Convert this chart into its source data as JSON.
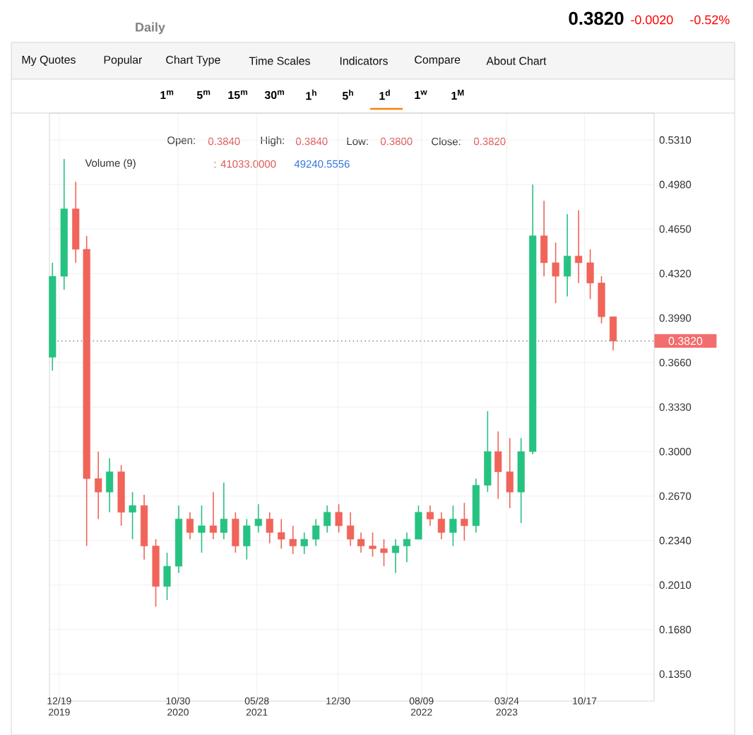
{
  "chart_data": {
    "type": "candlestick",
    "title": "Daily",
    "x": [
      "2019-12",
      "2020-01",
      "2020-02",
      "2020-03",
      "2020-04",
      "2020-05",
      "2020-06",
      "2020-07",
      "2020-08",
      "2020-09",
      "2020-10",
      "2020-11",
      "2020-12",
      "2021-01",
      "2021-02",
      "2021-03",
      "2021-04",
      "2021-05",
      "2021-06",
      "2021-07",
      "2021-08",
      "2021-09",
      "2021-10",
      "2021-11",
      "2021-12",
      "2022-01",
      "2022-02",
      "2022-03",
      "2022-04",
      "2022-05",
      "2022-06",
      "2022-07",
      "2022-08",
      "2022-09",
      "2022-10",
      "2022-11",
      "2022-12",
      "2023-01",
      "2023-02",
      "2023-03",
      "2023-04",
      "2023-05",
      "2023-06",
      "2023-07",
      "2023-08",
      "2023-09",
      "2023-10",
      "2023-11",
      "2023-12",
      "2024-01"
    ],
    "ohlc": [
      [
        0.37,
        0.44,
        0.36,
        0.43
      ],
      [
        0.43,
        0.517,
        0.42,
        0.48
      ],
      [
        0.48,
        0.5,
        0.44,
        0.45
      ],
      [
        0.45,
        0.46,
        0.23,
        0.28
      ],
      [
        0.28,
        0.3,
        0.25,
        0.27
      ],
      [
        0.27,
        0.295,
        0.255,
        0.285
      ],
      [
        0.285,
        0.29,
        0.245,
        0.255
      ],
      [
        0.255,
        0.27,
        0.235,
        0.26
      ],
      [
        0.26,
        0.268,
        0.22,
        0.23
      ],
      [
        0.23,
        0.235,
        0.185,
        0.2
      ],
      [
        0.2,
        0.225,
        0.19,
        0.215
      ],
      [
        0.215,
        0.26,
        0.21,
        0.25
      ],
      [
        0.25,
        0.255,
        0.235,
        0.24
      ],
      [
        0.24,
        0.26,
        0.225,
        0.245
      ],
      [
        0.245,
        0.27,
        0.235,
        0.24
      ],
      [
        0.24,
        0.277,
        0.235,
        0.25
      ],
      [
        0.25,
        0.255,
        0.225,
        0.23
      ],
      [
        0.23,
        0.25,
        0.22,
        0.245
      ],
      [
        0.245,
        0.261,
        0.24,
        0.25
      ],
      [
        0.25,
        0.255,
        0.232,
        0.24
      ],
      [
        0.24,
        0.25,
        0.228,
        0.235
      ],
      [
        0.235,
        0.245,
        0.224,
        0.23
      ],
      [
        0.23,
        0.24,
        0.224,
        0.235
      ],
      [
        0.235,
        0.25,
        0.23,
        0.245
      ],
      [
        0.245,
        0.26,
        0.24,
        0.255
      ],
      [
        0.255,
        0.261,
        0.24,
        0.245
      ],
      [
        0.245,
        0.255,
        0.23,
        0.235
      ],
      [
        0.235,
        0.24,
        0.225,
        0.23
      ],
      [
        0.23,
        0.24,
        0.222,
        0.228
      ],
      [
        0.228,
        0.235,
        0.215,
        0.225
      ],
      [
        0.225,
        0.235,
        0.21,
        0.23
      ],
      [
        0.23,
        0.24,
        0.218,
        0.235
      ],
      [
        0.235,
        0.26,
        0.235,
        0.255
      ],
      [
        0.255,
        0.26,
        0.245,
        0.25
      ],
      [
        0.25,
        0.255,
        0.235,
        0.24
      ],
      [
        0.24,
        0.26,
        0.23,
        0.25
      ],
      [
        0.25,
        0.262,
        0.234,
        0.245
      ],
      [
        0.245,
        0.28,
        0.24,
        0.275
      ],
      [
        0.275,
        0.33,
        0.27,
        0.3
      ],
      [
        0.3,
        0.315,
        0.265,
        0.285
      ],
      [
        0.285,
        0.31,
        0.258,
        0.27
      ],
      [
        0.27,
        0.31,
        0.247,
        0.3
      ],
      [
        0.3,
        0.498,
        0.298,
        0.46
      ],
      [
        0.46,
        0.486,
        0.43,
        0.44
      ],
      [
        0.44,
        0.455,
        0.41,
        0.43
      ],
      [
        0.43,
        0.476,
        0.415,
        0.445
      ],
      [
        0.445,
        0.479,
        0.425,
        0.44
      ],
      [
        0.44,
        0.45,
        0.413,
        0.425
      ],
      [
        0.425,
        0.43,
        0.395,
        0.4
      ],
      [
        0.4,
        0.4,
        0.375,
        0.382
      ]
    ],
    "colors": [
      "#26c281",
      "#26c281",
      "#f0645a",
      "#f0645a",
      "#f0645a",
      "#26c281",
      "#f0645a",
      "#26c281",
      "#f0645a",
      "#f0645a",
      "#26c281",
      "#26c281",
      "#f0645a",
      "#26c281",
      "#f0645a",
      "#26c281",
      "#f0645a",
      "#26c281",
      "#26c281",
      "#f0645a",
      "#f0645a",
      "#f0645a",
      "#26c281",
      "#26c281",
      "#26c281",
      "#f0645a",
      "#f0645a",
      "#f0645a",
      "#f0645a",
      "#f0645a",
      "#26c281",
      "#26c281",
      "#26c281",
      "#f0645a",
      "#f0645a",
      "#26c281",
      "#f0645a",
      "#26c281",
      "#26c281",
      "#f0645a",
      "#f0645a",
      "#26c281",
      "#26c281",
      "#f0645a",
      "#f0645a",
      "#26c281",
      "#f0645a",
      "#f0645a",
      "#f0645a",
      "#f0645a"
    ],
    "xlim": [
      "2019-11-23",
      "2024-04-19"
    ],
    "xticks": [
      {
        "value": "2019-12-19",
        "label": "12/19 2019"
      },
      {
        "value": "2020-10-30",
        "label": "10/30 2020"
      },
      {
        "value": "2021-05-28",
        "label": "05/28 2021"
      },
      {
        "value": "2021-12-30",
        "label": "12/30"
      },
      {
        "value": "2022-08-09",
        "label": "08/09 2022"
      },
      {
        "value": "2023-03-24",
        "label": "03/24 2023"
      },
      {
        "value": "2023-10-17",
        "label": "10/17"
      }
    ],
    "ylim": [
      0.115,
      0.551
    ],
    "yticks": [
      {
        "value": 0.135,
        "label": "0.1350"
      },
      {
        "value": 0.168,
        "label": "0.1680"
      },
      {
        "value": 0.201,
        "label": "0.2010"
      },
      {
        "value": 0.234,
        "label": "0.2340"
      },
      {
        "value": 0.267,
        "label": "0.2670"
      },
      {
        "value": 0.3,
        "label": "0.3000"
      },
      {
        "value": 0.333,
        "label": "0.3330"
      },
      {
        "value": 0.366,
        "label": "0.3660"
      },
      {
        "value": 0.399,
        "label": "0.3990"
      },
      {
        "value": 0.432,
        "label": "0.4320"
      },
      {
        "value": 0.465,
        "label": "0.4650"
      },
      {
        "value": 0.498,
        "label": "0.4980"
      },
      {
        "value": 0.531,
        "label": "0.5310"
      }
    ],
    "grid": true,
    "ref_lines": [
      {
        "axis": "y",
        "value": 0.382,
        "label": "0.3820",
        "color": "#888888",
        "line_style": "dotted"
      }
    ],
    "annotations": [
      "0.3820",
      "-0.0020",
      "-0.52%",
      "My Quotes",
      "Popular",
      "Chart Type",
      "Time Scales",
      "Indicators",
      "Compare",
      "About Chart",
      "1$^{m}$",
      "5$^{m}$",
      "15$^{m}$",
      "30$^{m}$",
      "1$^{h}$",
      "5$^{h}$",
      "1$^{d}$",
      "1$^{w}$",
      "1$^{M}$",
      "Open:",
      "0.3840",
      "High:",
      "0.3840",
      "Low:",
      "0.3800",
      "Close:",
      "0.3820",
      "Volume (9)",
      ": 41033.0000",
      "49240.5556"
    ]
  }
}
